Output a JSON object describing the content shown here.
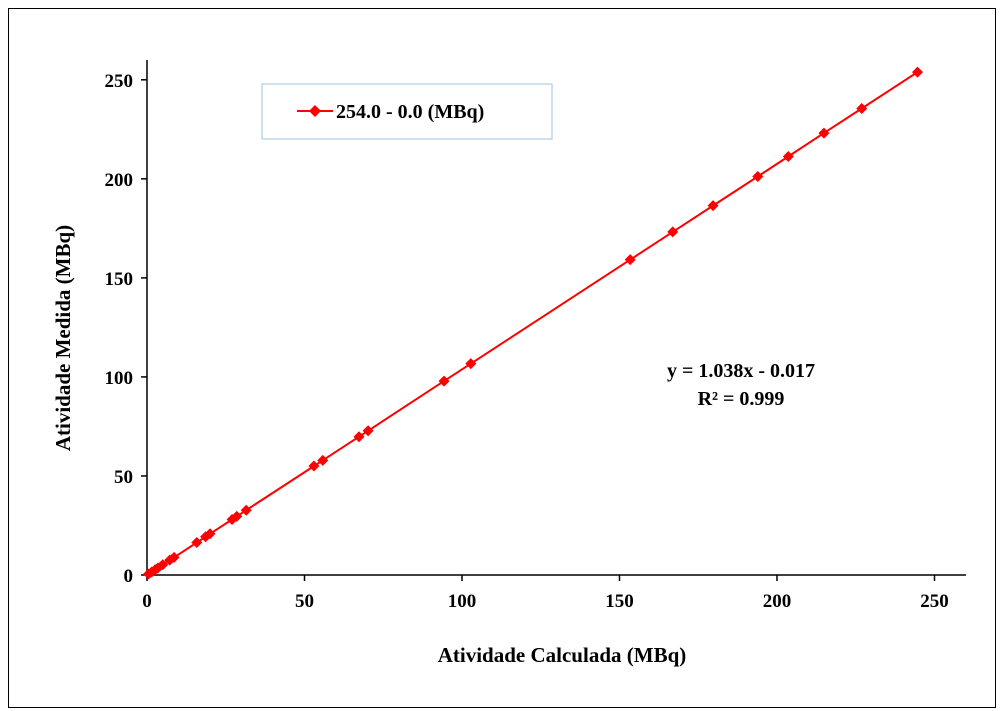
{
  "chart_data": {
    "type": "scatter",
    "xlabel": "Atividade Calculada (MBq)",
    "ylabel": "Atividade Medida (MBq)",
    "xlim": [
      0,
      260
    ],
    "ylim": [
      0,
      260
    ],
    "xticks": [
      0,
      50,
      100,
      150,
      200,
      250
    ],
    "yticks": [
      0,
      50,
      100,
      150,
      200,
      250
    ],
    "grid": false,
    "legend_position": "top-left",
    "series": [
      {
        "name": "254.0 - 0.0 (MBq)",
        "color": "#ff0000",
        "marker": "diamond",
        "connected": true,
        "x": [
          0.5,
          1.5,
          2.6,
          3.5,
          5.0,
          7.2,
          8.6,
          15.8,
          18.6,
          20.0,
          27.0,
          28.5,
          31.5,
          53.0,
          55.8,
          67.3,
          70.2,
          94.3,
          102.8,
          153.4,
          166.9,
          179.7,
          193.9,
          203.6,
          214.9,
          226.9,
          244.6
        ],
        "y": [
          0.5,
          1.5,
          2.7,
          3.6,
          5.2,
          7.5,
          8.9,
          16.4,
          19.3,
          20.8,
          28.0,
          29.6,
          32.7,
          55.0,
          57.9,
          69.8,
          72.8,
          97.9,
          106.7,
          159.2,
          173.2,
          186.5,
          201.2,
          211.3,
          223.1,
          235.5,
          253.9
        ]
      }
    ],
    "annotations": [
      "y = 1.038x - 0.017",
      "R² = 0.999"
    ]
  }
}
